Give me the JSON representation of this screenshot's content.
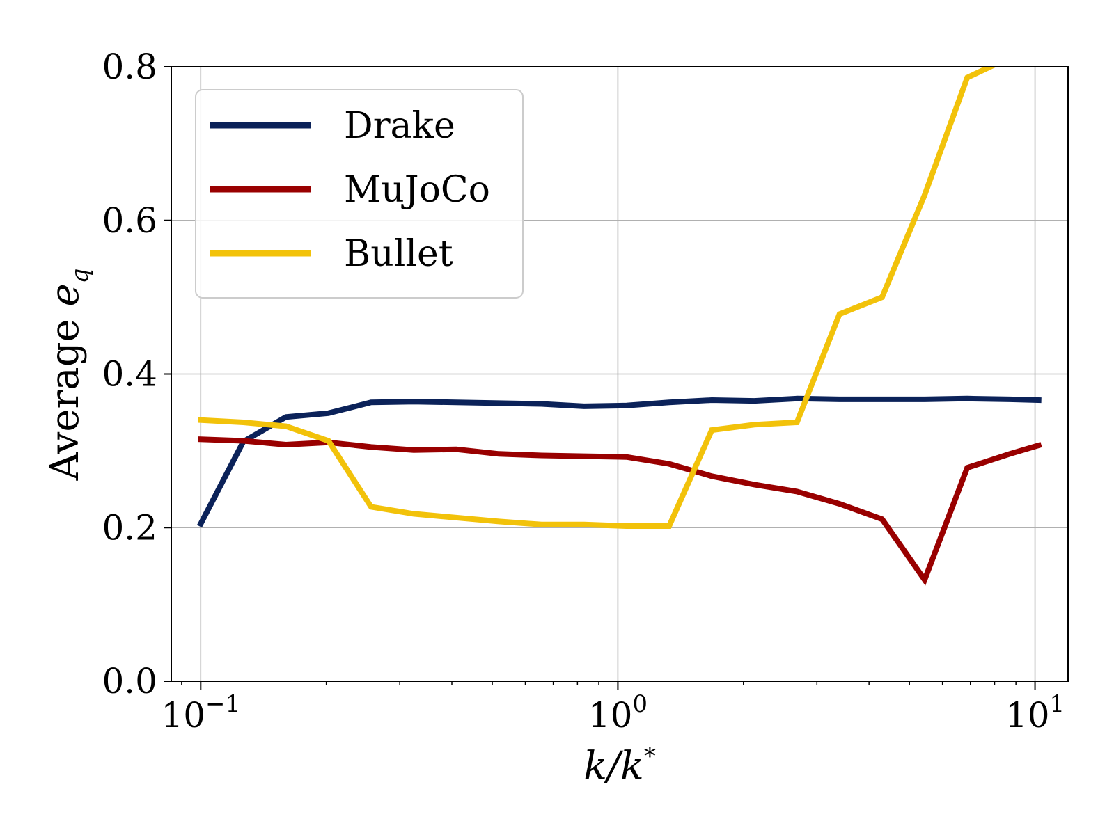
{
  "chart_data": {
    "type": "line",
    "xscale": "log",
    "xlim": [
      0.085,
      12.0
    ],
    "ylim": [
      0.0,
      0.8
    ],
    "grid": true,
    "legend_position": "top-left",
    "xlabel": {
      "base": "k/k",
      "sup": "*"
    },
    "ylabel": {
      "prefix": "Average ",
      "var": "e",
      "sub": "q"
    },
    "x_ticks": [
      {
        "base": "10",
        "exp": "−1",
        "value": 0.1
      },
      {
        "base": "10",
        "exp": "0",
        "value": 1
      },
      {
        "base": "10",
        "exp": "1",
        "value": 10
      }
    ],
    "y_ticks": [
      "0.0",
      "0.2",
      "0.4",
      "0.6",
      "0.8"
    ],
    "x": [
      0.1,
      0.1265,
      0.1601,
      0.2024,
      0.2561,
      0.3239,
      0.4097,
      0.5184,
      0.6556,
      0.8294,
      1.049,
      1.3274,
      1.679,
      2.1239,
      2.6865,
      3.3982,
      4.2987,
      5.4376,
      6.8777,
      8.7,
      10.2
    ],
    "series": [
      {
        "name": "Drake",
        "color": "#0b2259",
        "values": [
          0.205,
          0.312,
          0.344,
          0.349,
          0.363,
          0.364,
          0.363,
          0.362,
          0.361,
          0.358,
          0.359,
          0.363,
          0.366,
          0.365,
          0.368,
          0.367,
          0.367,
          0.367,
          0.368,
          0.367,
          0.366
        ]
      },
      {
        "name": "MuJoCo",
        "color": "#990000",
        "values": [
          0.315,
          0.313,
          0.308,
          0.311,
          0.305,
          0.301,
          0.302,
          0.296,
          0.294,
          0.293,
          0.292,
          0.283,
          0.267,
          0.256,
          0.247,
          0.231,
          0.211,
          0.132,
          0.278,
          0.296,
          0.307
        ]
      },
      {
        "name": "Bullet",
        "color": "#f2c20a",
        "values": [
          0.34,
          0.337,
          0.332,
          0.313,
          0.227,
          0.218,
          0.213,
          0.208,
          0.204,
          0.204,
          0.202,
          0.202,
          0.327,
          0.334,
          0.337,
          0.478,
          0.5,
          0.633,
          0.786,
          0.812,
          0.83
        ]
      }
    ]
  }
}
